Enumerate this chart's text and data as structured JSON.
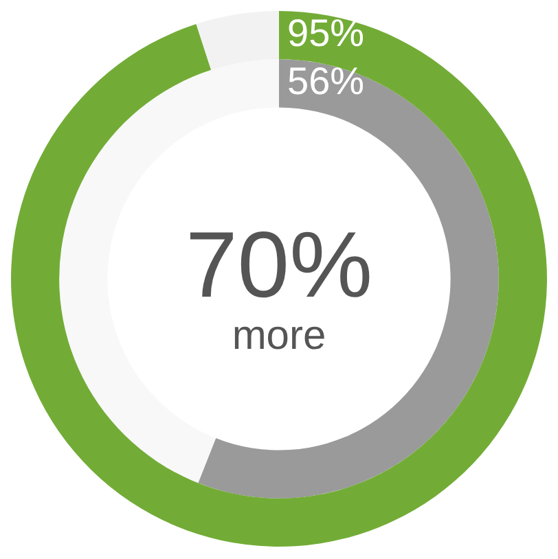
{
  "chart_data": {
    "type": "donut",
    "categories": [
      null,
      null
    ],
    "series": [
      {
        "values": [
          95,
          5
        ],
        "colors": [
          "#72ac36",
          "#f2f2f2"
        ],
        "value_labels": [
          "95%",
          null
        ]
      },
      {
        "values": [
          56,
          44
        ],
        "colors": [
          "#9a9a9a",
          "#f8f8f8"
        ],
        "value_labels": [
          "56%",
          null
        ]
      }
    ],
    "annotations": [
      "70%",
      "more"
    ],
    "legend": false
  }
}
